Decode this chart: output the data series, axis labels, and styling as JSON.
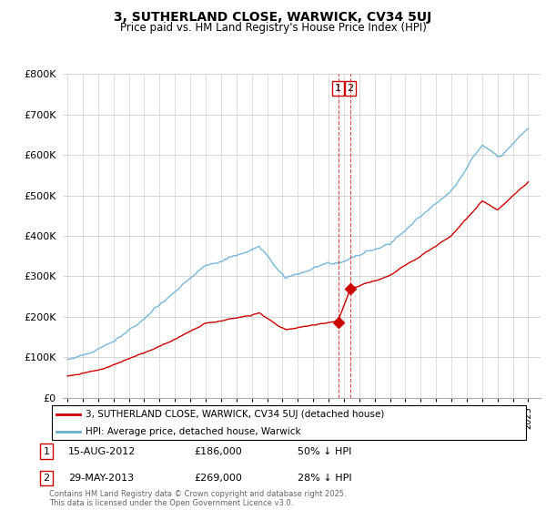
{
  "title": "3, SUTHERLAND CLOSE, WARWICK, CV34 5UJ",
  "subtitle": "Price paid vs. HM Land Registry's House Price Index (HPI)",
  "legend_line1": "3, SUTHERLAND CLOSE, WARWICK, CV34 5UJ (detached house)",
  "legend_line2": "HPI: Average price, detached house, Warwick",
  "transaction1_label": "1",
  "transaction1_date": "15-AUG-2012",
  "transaction1_price": "£186,000",
  "transaction1_hpi": "50% ↓ HPI",
  "transaction1_year": 2012.62,
  "transaction1_value": 186000,
  "transaction2_label": "2",
  "transaction2_date": "29-MAY-2013",
  "transaction2_price": "£269,000",
  "transaction2_hpi": "28% ↓ HPI",
  "transaction2_year": 2013.41,
  "transaction2_value": 269000,
  "footer": "Contains HM Land Registry data © Crown copyright and database right 2025.\nThis data is licensed under the Open Government Licence v3.0.",
  "hpi_color": "#6baed6",
  "price_color": "#cc0000",
  "vline_color": "#cc0000",
  "background_color": "#ffffff",
  "ylim_max": 800000,
  "yticks": [
    0,
    100000,
    200000,
    300000,
    400000,
    500000,
    600000,
    700000,
    800000
  ],
  "xlim_start": 1994.7,
  "xlim_end": 2025.8
}
